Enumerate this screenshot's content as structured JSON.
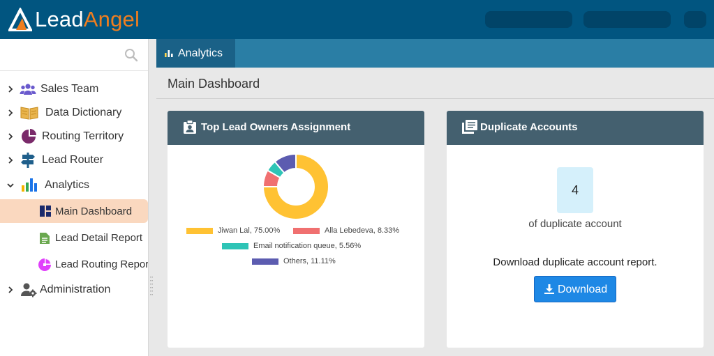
{
  "brand": {
    "logo_lead": "Lead",
    "logo_angel": "Angel",
    "accent": "#f07e1f",
    "header_bg": "#015580"
  },
  "sidebar": {
    "search_icon": "search-icon",
    "items": [
      {
        "label": "Sales Team",
        "icon": "people-icon"
      },
      {
        "label": "Data Dictionary",
        "icon": "book-icon"
      },
      {
        "label": "Routing Territory",
        "icon": "pie-icon"
      },
      {
        "label": "Lead Router",
        "icon": "signpost-icon"
      },
      {
        "label": "Analytics",
        "icon": "bar-chart-icon",
        "expanded": true
      },
      {
        "label": "Administration",
        "icon": "admin-gear-icon"
      }
    ],
    "analytics_children": [
      {
        "label": "Main Dashboard",
        "icon": "dashboard-icon",
        "active": true
      },
      {
        "label": "Lead Detail Report",
        "icon": "document-icon"
      },
      {
        "label": "Lead Routing Report",
        "icon": "pie-report-icon"
      }
    ]
  },
  "tabs": [
    {
      "label": "Analytics",
      "icon": "bar-chart-icon",
      "active": true
    }
  ],
  "page": {
    "title": "Main Dashboard"
  },
  "cards": {
    "owners": {
      "title": "Top Lead Owners Assignment",
      "icon": "clipboard-user-icon",
      "chart_data": {
        "type": "pie",
        "donut": true,
        "title": "",
        "series": [
          {
            "name": "Jiwan Lal",
            "value": 75.0,
            "label": "Jiwan Lal, 75.00%",
            "color": "#ffc233"
          },
          {
            "name": "Alla Lebedeva",
            "value": 8.33,
            "label": "Alla Lebedeva, 8.33%",
            "color": "#f07070"
          },
          {
            "name": "Email notification queue",
            "value": 5.56,
            "label": "Email notification queue, 5.56%",
            "color": "#2ec4b6"
          },
          {
            "name": "Others",
            "value": 11.11,
            "label": "Others, 11.11%",
            "color": "#5c5cb0"
          }
        ],
        "legend_position": "bottom"
      }
    },
    "duplicates": {
      "title": "Duplicate Accounts",
      "icon": "list-stack-icon",
      "count": "4",
      "count_label": "of duplicate account",
      "download_text": "Download duplicate account report.",
      "download_button": "Download"
    }
  }
}
